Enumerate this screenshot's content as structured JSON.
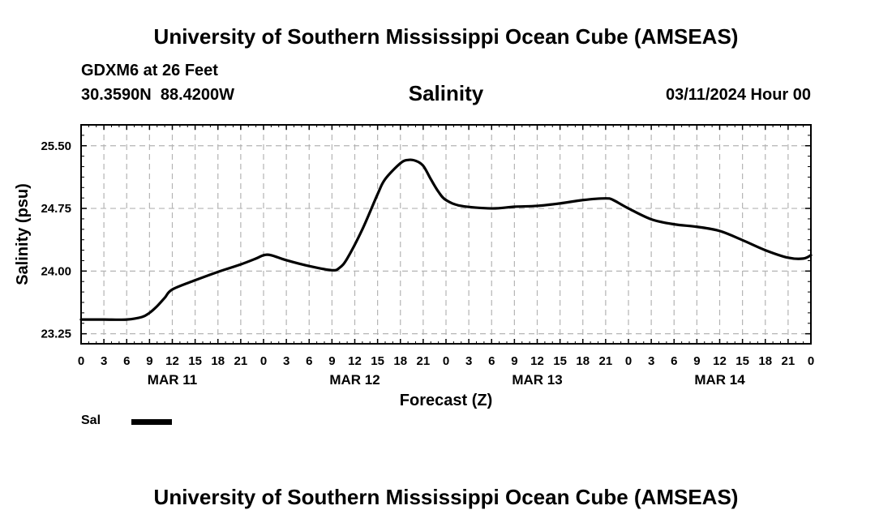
{
  "header": {
    "top_title": "University of Southern Mississippi Ocean Cube (AMSEAS)",
    "station": "GDXM6 at 26 Feet",
    "coords": "30.3590N  88.4200W",
    "chart_title": "Salinity",
    "timestamp": "03/11/2024 Hour 00",
    "bottom_title": "University of Southern Mississippi Ocean Cube (AMSEAS)"
  },
  "legend": {
    "label": "Sal",
    "color": "#000000"
  },
  "chart_data": {
    "type": "line",
    "title": "Salinity",
    "xlabel": "Forecast (Z)",
    "ylabel": "Salinity (psu)",
    "xlim": [
      0,
      96
    ],
    "ylim": [
      23.13,
      25.75
    ],
    "yticks": [
      "23.25",
      "24.00",
      "24.75",
      "25.50"
    ],
    "ytick_values": [
      23.25,
      24.0,
      24.75,
      25.5
    ],
    "xtick_labels": [
      "0",
      "3",
      "6",
      "9",
      "12",
      "15",
      "18",
      "21",
      "0",
      "3",
      "6",
      "9",
      "12",
      "15",
      "18",
      "21",
      "0",
      "3",
      "6",
      "9",
      "12",
      "15",
      "18",
      "21",
      "0",
      "3",
      "6",
      "9",
      "12",
      "15",
      "18",
      "21",
      "0"
    ],
    "day_labels": [
      {
        "label": "MAR 11",
        "x": 12
      },
      {
        "label": "MAR 12",
        "x": 36
      },
      {
        "label": "MAR 13",
        "x": 60
      },
      {
        "label": "MAR 14",
        "x": 84
      }
    ],
    "grid": true,
    "series": [
      {
        "name": "Sal",
        "color": "#000000",
        "x": [
          0,
          3,
          6,
          8,
          9,
          10,
          11,
          12,
          15,
          18,
          21,
          23,
          24,
          25,
          27,
          30,
          33,
          34,
          35,
          37,
          39,
          40,
          42,
          43,
          44,
          45,
          46,
          47,
          48,
          50,
          54,
          57,
          60,
          63,
          66,
          69,
          70,
          72,
          75,
          78,
          81,
          84,
          87,
          90,
          93,
          95,
          96
        ],
        "y": [
          23.42,
          23.42,
          23.42,
          23.45,
          23.5,
          23.58,
          23.68,
          23.78,
          23.89,
          23.99,
          24.08,
          24.15,
          24.19,
          24.19,
          24.13,
          24.06,
          24.01,
          24.04,
          24.15,
          24.5,
          24.92,
          25.1,
          25.29,
          25.33,
          25.32,
          25.26,
          25.1,
          24.95,
          24.85,
          24.78,
          24.75,
          24.77,
          24.78,
          24.81,
          24.85,
          24.87,
          24.85,
          24.75,
          24.62,
          24.56,
          24.53,
          24.48,
          24.37,
          24.25,
          24.16,
          24.15,
          24.19
        ]
      }
    ]
  }
}
